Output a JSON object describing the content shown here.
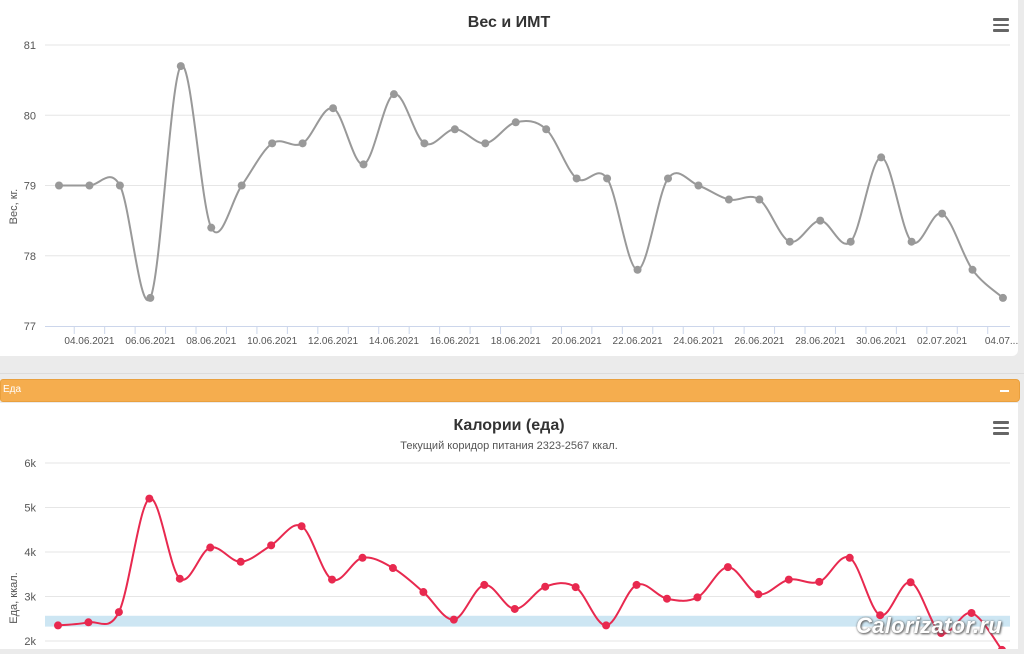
{
  "weight_panel": {
    "menu_icon": "hamburger-menu-icon"
  },
  "food_section": {
    "label": "Еда",
    "collapse_icon": "minus-icon",
    "color": "#f5ad4e"
  },
  "calorie_panel": {
    "menu_icon": "hamburger-menu-icon"
  },
  "watermark": "Calorizator.ru",
  "chart_data": [
    {
      "type": "line",
      "title": "Вес и ИМТ",
      "ylabel": "Вес, кг.",
      "ylim": [
        77,
        81
      ],
      "yticks": [
        "77",
        "78",
        "79",
        "80",
        "81"
      ],
      "xtick_labels": [
        "04.06.2021",
        "06.06.2021",
        "08.06.2021",
        "10.06.2021",
        "12.06.2021",
        "14.06.2021",
        "16.06.2021",
        "18.06.2021",
        "20.06.2021",
        "22.06.2021",
        "24.06.2021",
        "26.06.2021",
        "28.06.2021",
        "30.06.2021",
        "02.07.2021",
        "04.07...."
      ],
      "color": "#999999",
      "smooth": true,
      "series": [
        {
          "values": [
            79.0,
            79.0,
            79.0,
            77.4,
            80.7,
            78.4,
            79.0,
            79.6,
            79.6,
            80.1,
            79.3,
            80.3,
            79.6,
            79.8,
            79.6,
            79.9,
            79.8,
            79.1,
            79.1,
            77.8,
            79.1,
            79.0,
            78.8,
            78.8,
            78.2,
            78.5,
            78.2,
            79.4,
            78.2,
            78.6,
            77.8,
            77.4
          ]
        }
      ]
    },
    {
      "type": "line",
      "title": "Калории (еда)",
      "subtitle": "Текущий коридор питания 2323-2567 ккал.",
      "ylabel": "Еда, ккал.",
      "ylim": [
        2000,
        6000
      ],
      "yticks": [
        "2k",
        "3k",
        "4k",
        "5k",
        "6k"
      ],
      "band": [
        2323,
        2567
      ],
      "band_color": "#cde6f3",
      "color": "#e8294f",
      "smooth": true,
      "series": [
        {
          "values": [
            2350,
            2420,
            2650,
            5200,
            3400,
            4100,
            3780,
            4150,
            4580,
            3380,
            3870,
            3640,
            3100,
            2480,
            3260,
            2720,
            3220,
            3210,
            2350,
            3260,
            2950,
            2980,
            3660,
            3050,
            3380,
            3330,
            3870,
            2580,
            3320,
            2180,
            2630,
            1800
          ]
        }
      ]
    }
  ]
}
